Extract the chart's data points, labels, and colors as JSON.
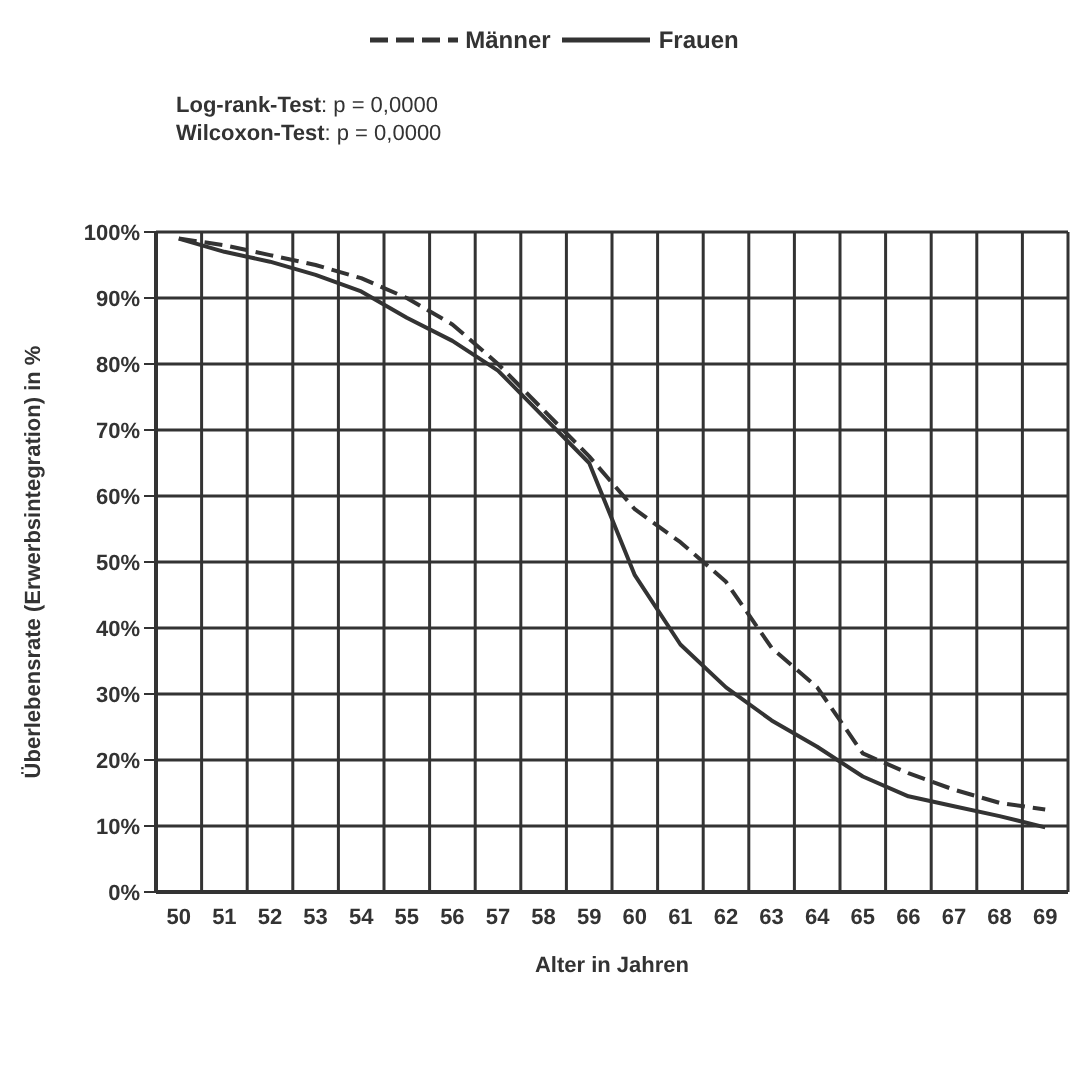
{
  "chart_data": {
    "type": "line",
    "xlabel": "Alter in Jahren",
    "ylabel": "Überlebensrate (Erwerbsintegration) in %",
    "annotations": [
      "Log-rank-Test: p = 0,0000",
      "Wilcoxon-Test: p = 0,0000"
    ],
    "categories": [
      "50",
      "51",
      "52",
      "53",
      "54",
      "55",
      "56",
      "57",
      "58",
      "59",
      "60",
      "61",
      "62",
      "63",
      "64",
      "65",
      "66",
      "67",
      "68",
      "69"
    ],
    "series": [
      {
        "name": "Männer",
        "color": "#333333",
        "line_style": "dashed",
        "values": [
          99,
          98,
          96.5,
          95,
          93,
          90,
          86,
          80,
          73,
          66,
          58,
          53,
          47,
          37,
          31,
          21,
          18,
          15.5,
          13.5,
          12.5
        ]
      },
      {
        "name": "Frauen",
        "color": "#333333",
        "line_style": "solid",
        "values": [
          99,
          97,
          95.5,
          93.5,
          91,
          87,
          83.5,
          79,
          72,
          65,
          48,
          37.5,
          31,
          26,
          22,
          17.5,
          14.5,
          13,
          11.5,
          9.8
        ]
      }
    ],
    "ylim": [
      0,
      100
    ],
    "yticks": [
      {
        "value": 0,
        "label": "0%"
      },
      {
        "value": 10,
        "label": "10%"
      },
      {
        "value": 20,
        "label": "20%"
      },
      {
        "value": 30,
        "label": "30%"
      },
      {
        "value": 40,
        "label": "40%"
      },
      {
        "value": 50,
        "label": "50%"
      },
      {
        "value": 60,
        "label": "60%"
      },
      {
        "value": 70,
        "label": "70%"
      },
      {
        "value": 80,
        "label": "80%"
      },
      {
        "value": 90,
        "label": "90%"
      },
      {
        "value": 100,
        "label": "100%"
      }
    ],
    "grid": true,
    "legend": "top",
    "marker": "none"
  }
}
